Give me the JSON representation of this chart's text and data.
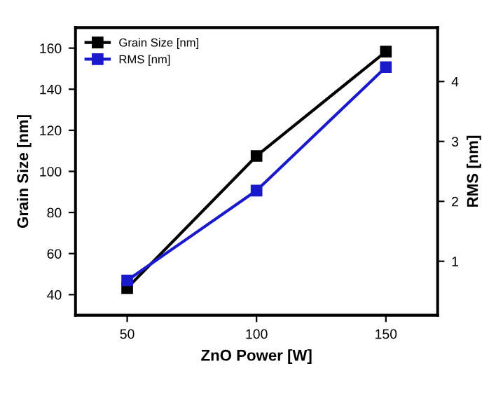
{
  "chart_data": {
    "type": "line",
    "xlabel": "ZnO Power [W]",
    "ylabel": "Grain Size [nm]",
    "y2label": "RMS [nm]",
    "x": [
      50,
      100,
      150
    ],
    "xlim": [
      30,
      170
    ],
    "xticks": [
      50,
      100,
      150
    ],
    "ylim": [
      30,
      170
    ],
    "yticks": [
      40,
      60,
      80,
      100,
      120,
      140,
      160
    ],
    "y2lim": [
      0.1,
      4.9
    ],
    "y2ticks": [
      1,
      2,
      3,
      4
    ],
    "marker": "square",
    "legend": "top left",
    "grid": false,
    "series": [
      {
        "name": "Grain Size [nm]",
        "color": "#000000",
        "values": [
          43.2,
          107.5,
          158.3
        ]
      },
      {
        "name": "RMS [nm]",
        "color": "#1a1acc",
        "values": [
          0.68,
          2.18,
          4.24
        ],
        "axis": "y2"
      }
    ]
  }
}
